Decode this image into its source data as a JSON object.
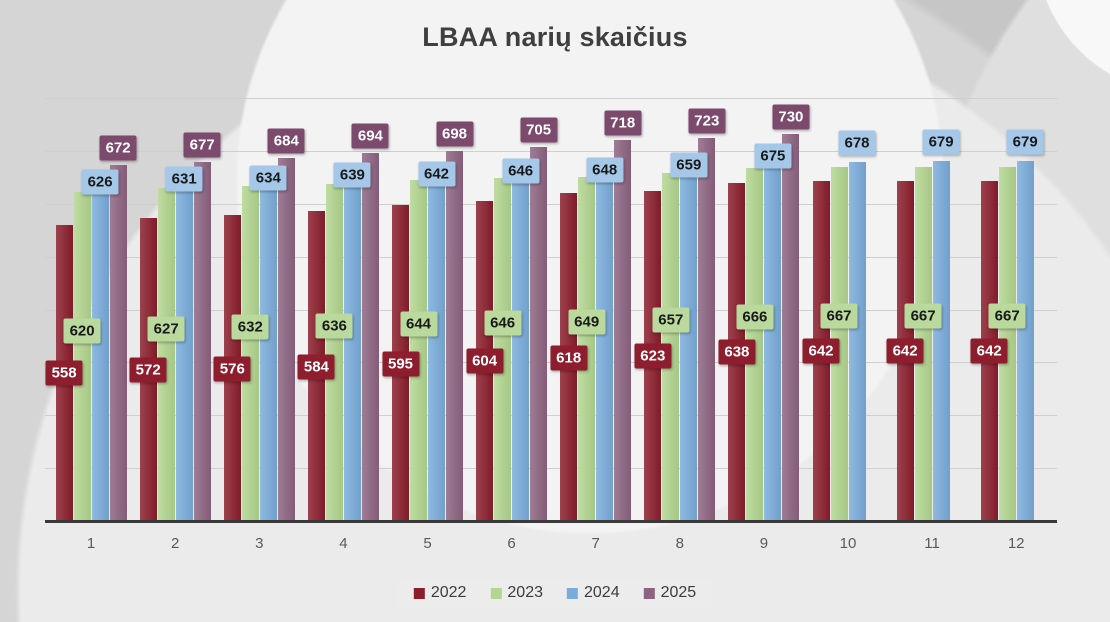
{
  "title": "LBAA narių skaičius",
  "chart_data": {
    "type": "bar",
    "title": "LBAA narių skaičius",
    "xlabel": "",
    "ylabel": "",
    "categories": [
      "1",
      "2",
      "3",
      "4",
      "5",
      "6",
      "7",
      "8",
      "9",
      "10",
      "11",
      "12"
    ],
    "series": [
      {
        "name": "2022",
        "bar_color": "#8b1d2c",
        "label_bg": "#8e1e2e",
        "label_text_color": "#ffffff",
        "values": [
          558,
          572,
          576,
          584,
          595,
          604,
          618,
          623,
          638,
          642,
          642,
          642
        ]
      },
      {
        "name": "2023",
        "bar_color": "#b2d68f",
        "label_bg": "#b9d99d",
        "label_text_color": "#1a1a1a",
        "values": [
          620,
          627,
          632,
          636,
          644,
          646,
          649,
          657,
          666,
          667,
          667,
          667
        ]
      },
      {
        "name": "2024",
        "bar_color": "#79acdb",
        "label_bg": "#a5c8e9",
        "label_text_color": "#1a1a1a",
        "values": [
          626,
          631,
          634,
          639,
          642,
          646,
          648,
          659,
          675,
          678,
          679,
          679
        ]
      },
      {
        "name": "2025",
        "bar_color": "#8d6381",
        "label_bg": "#7c4a6d",
        "label_text_color": "#ffffff",
        "values": [
          672,
          677,
          684,
          694,
          698,
          705,
          718,
          723,
          730,
          null,
          null,
          null
        ]
      }
    ],
    "ylim": [
      0,
      800
    ],
    "grid_step": 100,
    "grid": "on",
    "y_axis_labels_visible": false,
    "legend_position": "bottom",
    "data_labels": "on"
  }
}
